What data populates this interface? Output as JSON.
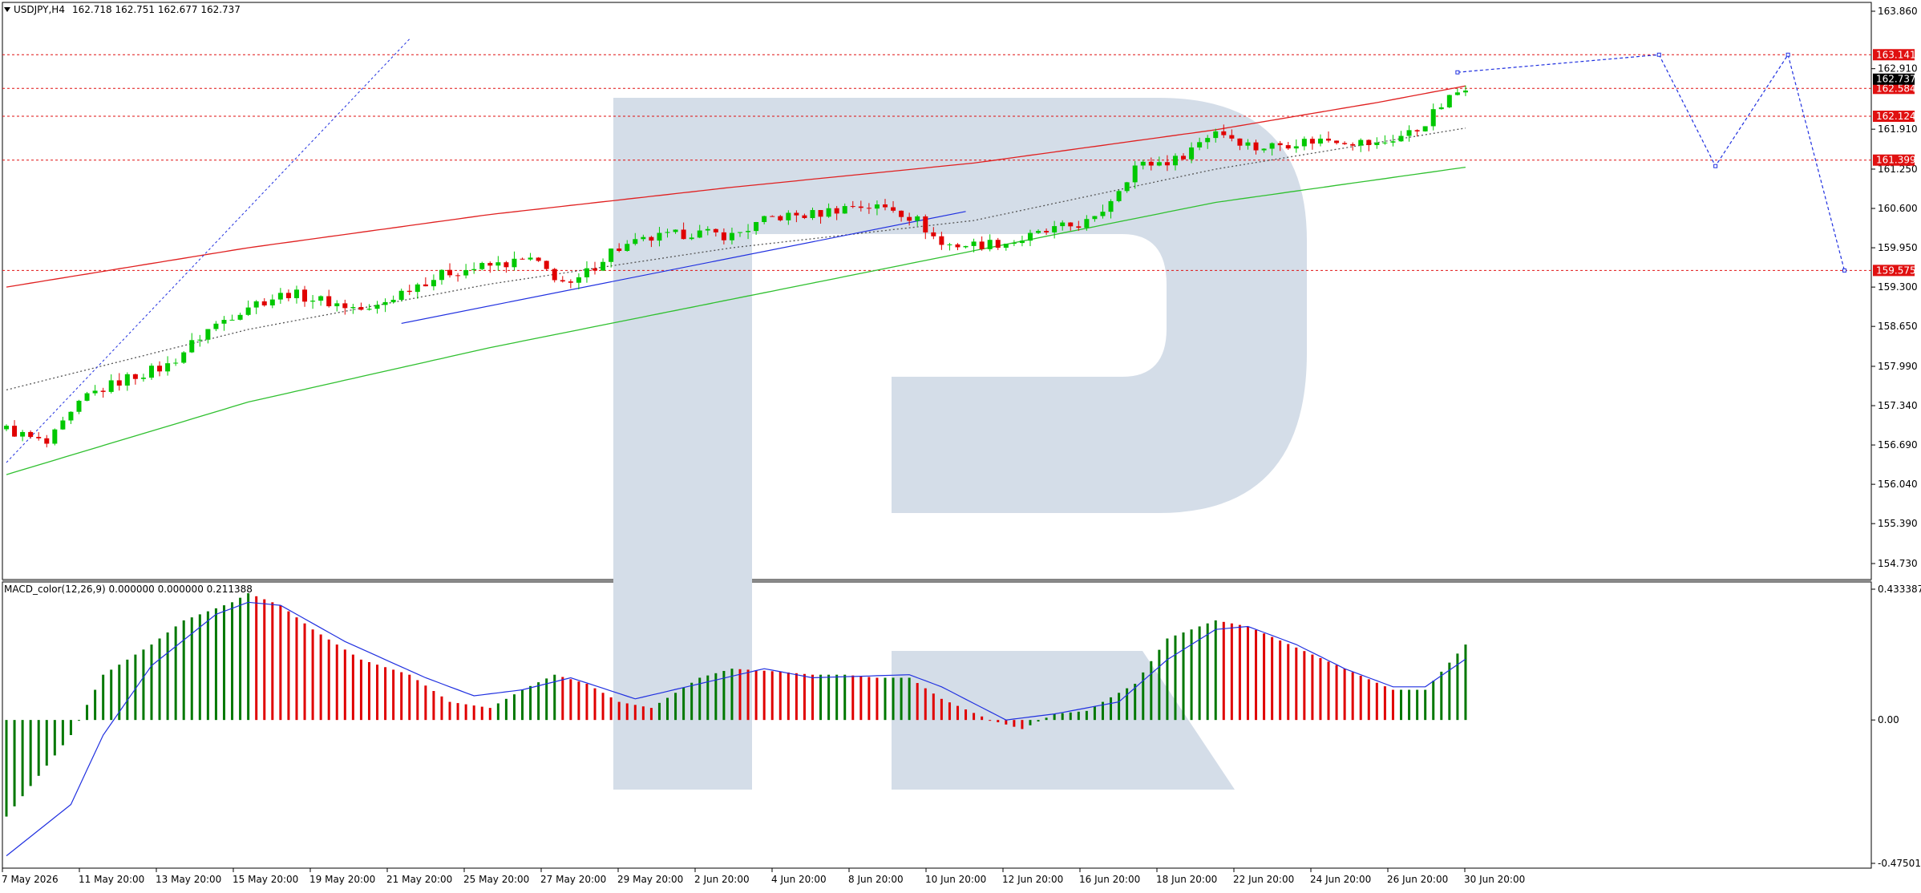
{
  "header": {
    "symbol_label": "USDJPY,H4",
    "ohlc_text": "162.718 162.751 162.677 162.737"
  },
  "macd": {
    "label": "MACD_color(12,26,9) 0.000000 0.000000 0.211388",
    "ticks": [
      "0.433387",
      "0.00",
      "-0.475013"
    ],
    "tick_values": [
      0.433387,
      0.0,
      -0.475013
    ]
  },
  "price_axis": {
    "ticks": [
      "163.860",
      "162.910",
      "161.910",
      "161.250",
      "160.600",
      "159.950",
      "159.300",
      "158.650",
      "157.990",
      "157.340",
      "156.690",
      "156.040",
      "155.390",
      "154.730"
    ],
    "tick_values": [
      163.86,
      162.91,
      161.91,
      161.25,
      160.6,
      159.95,
      159.3,
      158.65,
      157.99,
      157.34,
      156.69,
      156.04,
      155.39,
      154.73
    ]
  },
  "time_axis": {
    "labels": [
      "7 May 2026",
      "11 May 20:00",
      "13 May 20:00",
      "15 May 20:00",
      "19 May 20:00",
      "21 May 20:00",
      "25 May 20:00",
      "27 May 20:00",
      "29 May 20:00",
      "2 Jun 20:00",
      "4 Jun 20:00",
      "8 Jun 20:00",
      "10 Jun 20:00",
      "12 Jun 20:00",
      "16 Jun 20:00",
      "18 Jun 20:00",
      "22 Jun 20:00",
      "24 Jun 20:00",
      "26 Jun 20:00",
      "30 Jun 20:00"
    ]
  },
  "levels": [
    {
      "label": "163.141",
      "value": 163.141,
      "color": "#e01010"
    },
    {
      "label": "162.584",
      "value": 162.584,
      "color": "#e01010"
    },
    {
      "label": "162.124",
      "value": 162.124,
      "color": "#e01010"
    },
    {
      "label": "161.399",
      "value": 161.399,
      "color": "#e01010"
    },
    {
      "label": "159.575",
      "value": 159.575,
      "color": "#e01010"
    }
  ],
  "current_price": {
    "label": "162.737",
    "value": 162.737,
    "color": "#000000"
  },
  "colors": {
    "bull": "#00c800",
    "bear": "#e00000",
    "hist_up": "#007800",
    "hist_down": "#e00000",
    "signal": "#2030e0",
    "ma_red": "#e02020",
    "ma_green": "#30c030",
    "forecast": "#2030e0",
    "watermark": "#d4dde8"
  },
  "chart_data": [
    {
      "type": "candlestick",
      "title": "USDJPY,H4",
      "ylim": [
        154.5,
        164.0
      ],
      "bars": 182,
      "series": [
        {
          "role": "close",
          "anchors": [
            [
              0,
              156.95
            ],
            [
              5,
              156.7
            ],
            [
              10,
              157.5
            ],
            [
              15,
              157.8
            ],
            [
              20,
              158.0
            ],
            [
              25,
              158.6
            ],
            [
              30,
              159.0
            ],
            [
              35,
              159.2
            ],
            [
              40,
              159.05
            ],
            [
              45,
              158.9
            ],
            [
              50,
              159.3
            ],
            [
              55,
              159.55
            ],
            [
              60,
              159.65
            ],
            [
              65,
              159.75
            ],
            [
              70,
              159.3
            ],
            [
              75,
              159.9
            ],
            [
              80,
              160.1
            ],
            [
              85,
              160.2
            ],
            [
              90,
              160.15
            ],
            [
              95,
              160.45
            ],
            [
              100,
              160.5
            ],
            [
              105,
              160.65
            ],
            [
              110,
              160.6
            ],
            [
              113,
              160.4
            ],
            [
              116,
              160.0
            ],
            [
              120,
              160.0
            ],
            [
              125,
              160.05
            ],
            [
              130,
              160.25
            ],
            [
              135,
              160.4
            ],
            [
              140,
              161.3
            ],
            [
              145,
              161.4
            ],
            [
              150,
              161.9
            ],
            [
              155,
              161.6
            ],
            [
              160,
              161.7
            ],
            [
              165,
              161.75
            ],
            [
              170,
              161.65
            ],
            [
              175,
              161.9
            ],
            [
              178,
              162.3
            ],
            [
              182,
              162.74
            ]
          ]
        },
        {
          "name": "",
          "role": "ma_upper",
          "anchors": [
            [
              0,
              159.3
            ],
            [
              30,
              159.95
            ],
            [
              60,
              160.5
            ],
            [
              90,
              160.95
            ],
            [
              120,
              161.35
            ],
            [
              150,
              161.9
            ],
            [
              170,
              162.35
            ],
            [
              182,
              162.65
            ]
          ]
        },
        {
          "name": "",
          "role": "ma_lower",
          "anchors": [
            [
              0,
              156.2
            ],
            [
              30,
              157.4
            ],
            [
              60,
              158.3
            ],
            [
              90,
              159.1
            ],
            [
              120,
              159.9
            ],
            [
              150,
              160.7
            ],
            [
              182,
              161.3
            ]
          ]
        },
        {
          "name": "",
          "role": "dotted_mid",
          "anchors": [
            [
              0,
              157.6
            ],
            [
              30,
              158.6
            ],
            [
              60,
              159.35
            ],
            [
              90,
              159.95
            ],
            [
              120,
              160.4
            ],
            [
              150,
              161.25
            ],
            [
              182,
              161.95
            ]
          ]
        }
      ],
      "forecast_path": [
        [
          180,
          162.85
        ],
        [
          205,
          163.141
        ],
        [
          212,
          161.3
        ],
        [
          221,
          163.141
        ],
        [
          228,
          159.575
        ]
      ],
      "annotations": {
        "vline_x": 182
      }
    },
    {
      "type": "bar",
      "title": "MACD_color(12,26,9)",
      "ylim": [
        -0.475013,
        0.433387
      ],
      "histogram_anchors": [
        [
          0,
          -0.32
        ],
        [
          8,
          -0.05
        ],
        [
          12,
          0.15
        ],
        [
          18,
          0.25
        ],
        [
          22,
          0.33
        ],
        [
          28,
          0.39
        ],
        [
          30,
          0.42
        ],
        [
          34,
          0.38
        ],
        [
          38,
          0.3
        ],
        [
          44,
          0.2
        ],
        [
          50,
          0.15
        ],
        [
          55,
          0.06
        ],
        [
          60,
          0.04
        ],
        [
          64,
          0.1
        ],
        [
          68,
          0.15
        ],
        [
          72,
          0.12
        ],
        [
          76,
          0.06
        ],
        [
          80,
          0.04
        ],
        [
          86,
          0.14
        ],
        [
          90,
          0.17
        ],
        [
          96,
          0.16
        ],
        [
          100,
          0.15
        ],
        [
          104,
          0.15
        ],
        [
          108,
          0.14
        ],
        [
          112,
          0.14
        ],
        [
          116,
          0.07
        ],
        [
          122,
          0.0
        ],
        [
          126,
          -0.03
        ],
        [
          130,
          0.02
        ],
        [
          134,
          0.03
        ],
        [
          140,
          0.12
        ],
        [
          144,
          0.27
        ],
        [
          150,
          0.33
        ],
        [
          154,
          0.31
        ],
        [
          160,
          0.24
        ],
        [
          166,
          0.17
        ],
        [
          172,
          0.1
        ],
        [
          176,
          0.1
        ],
        [
          182,
          0.28
        ]
      ],
      "signal_anchors": [
        [
          0,
          -0.45
        ],
        [
          8,
          -0.28
        ],
        [
          12,
          -0.05
        ],
        [
          18,
          0.18
        ],
        [
          26,
          0.35
        ],
        [
          30,
          0.39
        ],
        [
          34,
          0.38
        ],
        [
          42,
          0.26
        ],
        [
          52,
          0.14
        ],
        [
          58,
          0.08
        ],
        [
          64,
          0.1
        ],
        [
          70,
          0.14
        ],
        [
          78,
          0.07
        ],
        [
          86,
          0.12
        ],
        [
          94,
          0.17
        ],
        [
          100,
          0.14
        ],
        [
          112,
          0.15
        ],
        [
          116,
          0.11
        ],
        [
          124,
          0.0
        ],
        [
          130,
          0.02
        ],
        [
          138,
          0.06
        ],
        [
          144,
          0.2
        ],
        [
          150,
          0.3
        ],
        [
          154,
          0.31
        ],
        [
          160,
          0.25
        ],
        [
          166,
          0.17
        ],
        [
          172,
          0.11
        ],
        [
          176,
          0.11
        ],
        [
          182,
          0.22
        ]
      ]
    }
  ]
}
